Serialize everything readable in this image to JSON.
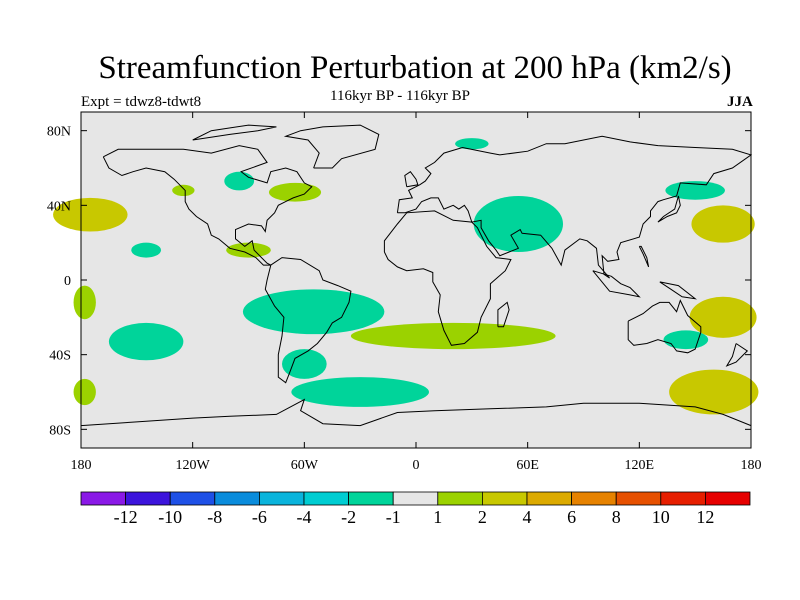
{
  "title": "Streamfunction Perturbation at 200 hPa (km2/s)",
  "subtitle": "116kyr BP - 116kyr BP",
  "experiment": "Expt = tdwz8-tdwt8",
  "season": "JJA",
  "map": {
    "projection": "cylindrical equidistant",
    "lon_range": [
      -180,
      180
    ],
    "lat_range": [
      -90,
      90
    ],
    "ocean_land_fill": "#e6e6e6",
    "coastline_color": "#000000",
    "x_ticks": [
      {
        "lon": -180,
        "label": "180"
      },
      {
        "lon": -120,
        "label": "120W"
      },
      {
        "lon": -60,
        "label": "60W"
      },
      {
        "lon": 0,
        "label": "0"
      },
      {
        "lon": 60,
        "label": "60E"
      },
      {
        "lon": 120,
        "label": "120E"
      },
      {
        "lon": 180,
        "label": "180"
      }
    ],
    "y_ticks": [
      {
        "lat": 80,
        "label": "80N"
      },
      {
        "lat": 40,
        "label": "40N"
      },
      {
        "lat": 0,
        "label": "0"
      },
      {
        "lat": -40,
        "label": "40S"
      },
      {
        "lat": -80,
        "label": "80S"
      }
    ],
    "anomaly_regions": [
      {
        "name": "north-pacific-west-pos",
        "lon": -175,
        "lat": 35,
        "rlon": 20,
        "rlat": 9,
        "color": "#c8c800"
      },
      {
        "name": "alaska-pos",
        "lon": -125,
        "lat": 48,
        "rlon": 6,
        "rlat": 3,
        "color": "#9bd200"
      },
      {
        "name": "canada-neg",
        "lon": -95,
        "lat": 53,
        "rlon": 8,
        "rlat": 5,
        "color": "#00d49a"
      },
      {
        "name": "north-atlantic-pos",
        "lon": -65,
        "lat": 47,
        "rlon": 14,
        "rlat": 5,
        "color": "#9bd200"
      },
      {
        "name": "greenland-neg",
        "lon": 30,
        "lat": 73,
        "rlon": 9,
        "rlat": 3,
        "color": "#00d49a"
      },
      {
        "name": "asia-neg",
        "lon": 55,
        "lat": 30,
        "rlon": 24,
        "rlat": 15,
        "color": "#00d49a"
      },
      {
        "name": "eq-pacific-neg",
        "lon": -145,
        "lat": 16,
        "rlon": 8,
        "rlat": 4,
        "color": "#00d49a"
      },
      {
        "name": "caribbean-pos",
        "lon": -90,
        "lat": 16,
        "rlon": 12,
        "rlat": 4,
        "color": "#9bd200"
      },
      {
        "name": "nw-pacific-neg",
        "lon": 150,
        "lat": 48,
        "rlon": 16,
        "rlat": 5,
        "color": "#00d49a"
      },
      {
        "name": "west-pacific-pos",
        "lon": 165,
        "lat": 30,
        "rlon": 17,
        "rlat": 10,
        "color": "#c8c800"
      },
      {
        "name": "south-america-neg",
        "lon": -55,
        "lat": -17,
        "rlon": 38,
        "rlat": 12,
        "color": "#00d49a"
      },
      {
        "name": "south-pacific-neg",
        "lon": -145,
        "lat": -33,
        "rlon": 20,
        "rlat": 10,
        "color": "#00d49a"
      },
      {
        "name": "argentina-neg",
        "lon": -60,
        "lat": -45,
        "rlon": 12,
        "rlat": 8,
        "color": "#00d49a"
      },
      {
        "name": "east-pacific-pos",
        "lon": -178,
        "lat": -12,
        "rlon": 6,
        "rlat": 9,
        "color": "#9bd200"
      },
      {
        "name": "south-atlantic-pos",
        "lon": 20,
        "lat": -30,
        "rlon": 55,
        "rlat": 7,
        "color": "#9bd200"
      },
      {
        "name": "australia-neg",
        "lon": 145,
        "lat": -32,
        "rlon": 12,
        "rlat": 5,
        "color": "#00d49a"
      },
      {
        "name": "sw-pacific-pos",
        "lon": 165,
        "lat": -20,
        "rlon": 18,
        "rlat": 11,
        "color": "#c8c800"
      },
      {
        "name": "southern-ocean-neg",
        "lon": -30,
        "lat": -60,
        "rlon": 37,
        "rlat": 8,
        "color": "#00d49a"
      },
      {
        "name": "southern-pacific-pos",
        "lon": 160,
        "lat": -60,
        "rlon": 24,
        "rlat": 12,
        "color": "#c8c800"
      },
      {
        "name": "south-pacific-west-pos",
        "lon": -178,
        "lat": -60,
        "rlon": 6,
        "rlat": 7,
        "color": "#9bd200"
      }
    ]
  },
  "colorbar": {
    "colors": [
      "#8a19e6",
      "#3c14dc",
      "#1e50e6",
      "#0a8cdc",
      "#0ab4dc",
      "#00cdd2",
      "#00d49a",
      "#e6e6e6",
      "#9bd200",
      "#c8c800",
      "#dcaa00",
      "#e68200",
      "#e65000",
      "#e61e00",
      "#e60000"
    ],
    "labels": [
      "-12",
      "-10",
      "-8",
      "-6",
      "-4",
      "-2",
      "-1",
      "1",
      "2",
      "4",
      "6",
      "8",
      "10",
      "12"
    ]
  }
}
